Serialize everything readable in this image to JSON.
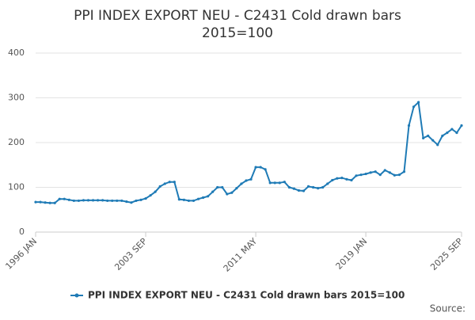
{
  "chart_data": {
    "type": "line",
    "title": "PPI INDEX EXPORT NEU - C2431 Cold drawn bars",
    "subtitle": "2015=100",
    "source": "Source:",
    "categories": [
      "1996 JAN",
      null,
      null,
      null,
      null,
      null,
      null,
      null,
      null,
      null,
      null,
      null,
      null,
      null,
      null,
      null,
      null,
      null,
      null,
      null,
      null,
      null,
      null,
      "2003 SEP",
      null,
      null,
      null,
      null,
      null,
      null,
      null,
      null,
      null,
      null,
      null,
      null,
      null,
      null,
      null,
      null,
      null,
      null,
      null,
      null,
      null,
      null,
      "2011 MAY",
      null,
      null,
      null,
      null,
      null,
      null,
      null,
      null,
      null,
      null,
      null,
      null,
      null,
      null,
      null,
      null,
      null,
      null,
      null,
      null,
      null,
      null,
      "2019 JAN",
      null,
      null,
      null,
      null,
      null,
      null,
      null,
      null,
      null,
      null,
      null,
      null,
      null,
      null,
      null,
      null,
      null,
      null,
      null,
      "2025 SEP"
    ],
    "series": [
      {
        "name": "PPI INDEX EXPORT NEU - C2431 Cold drawn bars 2015=100",
        "color": "#1f7bb6",
        "values": [
          67,
          67,
          66,
          65,
          65,
          74,
          74,
          72,
          70,
          70,
          71,
          71,
          71,
          71,
          71,
          70,
          70,
          70,
          70,
          68,
          66,
          70,
          72,
          75,
          82,
          90,
          102,
          108,
          112,
          112,
          73,
          72,
          70,
          70,
          74,
          77,
          80,
          90,
          100,
          100,
          85,
          88,
          98,
          108,
          115,
          118,
          145,
          145,
          140,
          110,
          110,
          110,
          112,
          100,
          97,
          93,
          92,
          102,
          100,
          98,
          100,
          108,
          116,
          120,
          121,
          118,
          116,
          126,
          128,
          130,
          133,
          135,
          128,
          138,
          133,
          127,
          128,
          135,
          238,
          280,
          290,
          210,
          215,
          205,
          195,
          215,
          222,
          230,
          222,
          238
        ]
      }
    ],
    "ylim": [
      0,
      400
    ],
    "yticks": [
      0,
      100,
      200,
      300,
      400
    ],
    "grid": true
  }
}
